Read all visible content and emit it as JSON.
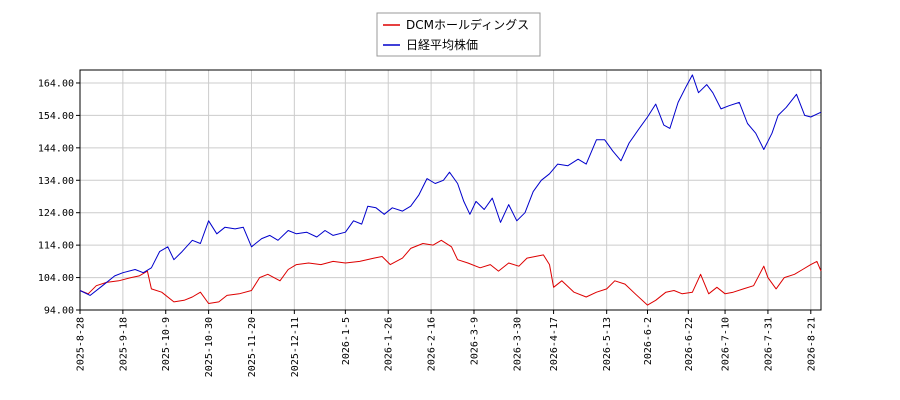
{
  "chart_data": {
    "type": "line",
    "title": "",
    "xlabel": "",
    "ylabel": "",
    "ylim": [
      94,
      168
    ],
    "xlim": [
      "2025-08-28",
      "2026-08-26"
    ],
    "y_ticks": [
      "94.00",
      "104.00",
      "114.00",
      "124.00",
      "134.00",
      "144.00",
      "154.00",
      "164.00"
    ],
    "x_ticks": [
      "2025-8-28",
      "2025-9-18",
      "2025-10-9",
      "2025-10-30",
      "2025-11-20",
      "2025-12-11",
      "2026-1-5",
      "2026-1-26",
      "2026-2-16",
      "2026-3-9",
      "2026-3-30",
      "2026-4-17",
      "2026-5-13",
      "2026-6-2",
      "2026-6-22",
      "2026-7-10",
      "2026-7-31",
      "2026-8-21"
    ],
    "x_tick_dates": [
      "2025-08-28",
      "2025-09-18",
      "2025-10-09",
      "2025-10-30",
      "2025-11-20",
      "2025-12-11",
      "2026-01-05",
      "2026-01-26",
      "2026-02-16",
      "2026-03-09",
      "2026-03-30",
      "2026-04-17",
      "2026-05-13",
      "2026-06-02",
      "2026-06-22",
      "2026-07-10",
      "2026-07-31",
      "2026-08-21"
    ],
    "grid": true,
    "legend_position": "top-center",
    "series": [
      {
        "name": "DCMホールディングス",
        "color": "#dd0000",
        "points": [
          [
            "2025-08-28",
            100.0
          ],
          [
            "2025-09-01",
            99.0
          ],
          [
            "2025-09-05",
            101.5
          ],
          [
            "2025-09-10",
            102.5
          ],
          [
            "2025-09-16",
            103.0
          ],
          [
            "2025-09-22",
            104.0
          ],
          [
            "2025-09-26",
            104.5
          ],
          [
            "2025-09-30",
            106.0
          ],
          [
            "2025-10-02",
            100.5
          ],
          [
            "2025-10-07",
            99.5
          ],
          [
            "2025-10-13",
            96.5
          ],
          [
            "2025-10-18",
            97.0
          ],
          [
            "2025-10-22",
            98.0
          ],
          [
            "2025-10-26",
            99.5
          ],
          [
            "2025-10-30",
            96.0
          ],
          [
            "2025-11-04",
            96.5
          ],
          [
            "2025-11-08",
            98.5
          ],
          [
            "2025-11-14",
            99.0
          ],
          [
            "2025-11-20",
            100.0
          ],
          [
            "2025-11-24",
            104.0
          ],
          [
            "2025-11-28",
            105.0
          ],
          [
            "2025-12-04",
            103.0
          ],
          [
            "2025-12-08",
            106.5
          ],
          [
            "2025-12-12",
            108.0
          ],
          [
            "2025-12-18",
            108.5
          ],
          [
            "2025-12-24",
            108.0
          ],
          [
            "2025-12-30",
            109.0
          ],
          [
            "2026-01-05",
            108.5
          ],
          [
            "2026-01-12",
            109.0
          ],
          [
            "2026-01-19",
            110.0
          ],
          [
            "2026-01-23",
            110.5
          ],
          [
            "2026-01-27",
            108.0
          ],
          [
            "2026-02-02",
            110.0
          ],
          [
            "2026-02-06",
            113.0
          ],
          [
            "2026-02-12",
            114.5
          ],
          [
            "2026-02-17",
            114.0
          ],
          [
            "2026-02-21",
            115.5
          ],
          [
            "2026-02-26",
            113.5
          ],
          [
            "2026-03-01",
            109.5
          ],
          [
            "2026-03-06",
            108.5
          ],
          [
            "2026-03-12",
            107.0
          ],
          [
            "2026-03-17",
            108.0
          ],
          [
            "2026-03-21",
            106.0
          ],
          [
            "2026-03-26",
            108.5
          ],
          [
            "2026-03-31",
            107.5
          ],
          [
            "2026-04-04",
            110.0
          ],
          [
            "2026-04-08",
            110.5
          ],
          [
            "2026-04-12",
            111.0
          ],
          [
            "2026-04-15",
            108.0
          ],
          [
            "2026-04-17",
            101.0
          ],
          [
            "2026-04-21",
            103.0
          ],
          [
            "2026-04-27",
            99.5
          ],
          [
            "2026-05-03",
            98.0
          ],
          [
            "2026-05-08",
            99.5
          ],
          [
            "2026-05-13",
            100.5
          ],
          [
            "2026-05-17",
            103.0
          ],
          [
            "2026-05-22",
            102.0
          ],
          [
            "2026-05-27",
            99.0
          ],
          [
            "2026-06-02",
            95.5
          ],
          [
            "2026-06-06",
            97.0
          ],
          [
            "2026-06-11",
            99.5
          ],
          [
            "2026-06-15",
            100.0
          ],
          [
            "2026-06-19",
            99.0
          ],
          [
            "2026-06-24",
            99.5
          ],
          [
            "2026-06-28",
            105.0
          ],
          [
            "2026-07-02",
            99.0
          ],
          [
            "2026-07-06",
            101.0
          ],
          [
            "2026-07-10",
            99.0
          ],
          [
            "2026-07-14",
            99.5
          ],
          [
            "2026-07-19",
            100.5
          ],
          [
            "2026-07-24",
            101.5
          ],
          [
            "2026-07-29",
            107.5
          ],
          [
            "2026-07-31",
            104.0
          ],
          [
            "2026-08-04",
            100.5
          ],
          [
            "2026-08-08",
            104.0
          ],
          [
            "2026-08-13",
            105.0
          ],
          [
            "2026-08-17",
            106.5
          ],
          [
            "2026-08-21",
            108.0
          ],
          [
            "2026-08-24",
            109.0
          ],
          [
            "2026-08-26",
            106.0
          ]
        ]
      },
      {
        "name": "日経平均株価",
        "color": "#0000cc",
        "points": [
          [
            "2025-08-28",
            100.0
          ],
          [
            "2025-09-02",
            98.5
          ],
          [
            "2025-09-08",
            101.5
          ],
          [
            "2025-09-14",
            104.5
          ],
          [
            "2025-09-18",
            105.5
          ],
          [
            "2025-09-24",
            106.5
          ],
          [
            "2025-09-28",
            105.5
          ],
          [
            "2025-10-02",
            107.0
          ],
          [
            "2025-10-06",
            112.0
          ],
          [
            "2025-10-10",
            113.5
          ],
          [
            "2025-10-13",
            109.5
          ],
          [
            "2025-10-17",
            112.0
          ],
          [
            "2025-10-22",
            115.5
          ],
          [
            "2025-10-26",
            114.5
          ],
          [
            "2025-10-30",
            121.5
          ],
          [
            "2025-11-03",
            117.5
          ],
          [
            "2025-11-07",
            119.5
          ],
          [
            "2025-11-12",
            119.0
          ],
          [
            "2025-11-16",
            119.5
          ],
          [
            "2025-11-20",
            113.5
          ],
          [
            "2025-11-25",
            116.0
          ],
          [
            "2025-11-29",
            117.0
          ],
          [
            "2025-12-03",
            115.5
          ],
          [
            "2025-12-08",
            118.5
          ],
          [
            "2025-12-12",
            117.5
          ],
          [
            "2025-12-17",
            118.0
          ],
          [
            "2025-12-22",
            116.5
          ],
          [
            "2025-12-26",
            118.5
          ],
          [
            "2025-12-30",
            117.0
          ],
          [
            "2026-01-05",
            118.0
          ],
          [
            "2026-01-09",
            121.5
          ],
          [
            "2026-01-13",
            120.5
          ],
          [
            "2026-01-16",
            126.0
          ],
          [
            "2026-01-20",
            125.5
          ],
          [
            "2026-01-24",
            123.5
          ],
          [
            "2026-01-28",
            125.5
          ],
          [
            "2026-02-02",
            124.5
          ],
          [
            "2026-02-06",
            126.0
          ],
          [
            "2026-02-10",
            129.5
          ],
          [
            "2026-02-14",
            134.5
          ],
          [
            "2026-02-18",
            133.0
          ],
          [
            "2026-02-22",
            134.0
          ],
          [
            "2026-02-25",
            136.5
          ],
          [
            "2026-03-01",
            133.0
          ],
          [
            "2026-03-04",
            127.5
          ],
          [
            "2026-03-07",
            123.5
          ],
          [
            "2026-03-10",
            127.5
          ],
          [
            "2026-03-14",
            125.0
          ],
          [
            "2026-03-18",
            128.5
          ],
          [
            "2026-03-22",
            121.0
          ],
          [
            "2026-03-26",
            126.5
          ],
          [
            "2026-03-30",
            121.5
          ],
          [
            "2026-04-03",
            124.0
          ],
          [
            "2026-04-07",
            130.5
          ],
          [
            "2026-04-11",
            134.0
          ],
          [
            "2026-04-15",
            136.0
          ],
          [
            "2026-04-19",
            139.0
          ],
          [
            "2026-04-24",
            138.5
          ],
          [
            "2026-04-29",
            140.5
          ],
          [
            "2026-05-03",
            139.0
          ],
          [
            "2026-05-08",
            146.5
          ],
          [
            "2026-05-12",
            146.5
          ],
          [
            "2026-05-16",
            143.0
          ],
          [
            "2026-05-20",
            140.0
          ],
          [
            "2026-05-24",
            145.5
          ],
          [
            "2026-05-29",
            150.0
          ],
          [
            "2026-06-02",
            153.5
          ],
          [
            "2026-06-06",
            157.5
          ],
          [
            "2026-06-10",
            151.0
          ],
          [
            "2026-06-13",
            150.0
          ],
          [
            "2026-06-17",
            158.0
          ],
          [
            "2026-06-21",
            163.0
          ],
          [
            "2026-06-24",
            166.5
          ],
          [
            "2026-06-27",
            161.0
          ],
          [
            "2026-07-01",
            163.5
          ],
          [
            "2026-07-04",
            161.0
          ],
          [
            "2026-07-08",
            156.0
          ],
          [
            "2026-07-12",
            157.0
          ],
          [
            "2026-07-17",
            158.0
          ],
          [
            "2026-07-21",
            151.5
          ],
          [
            "2026-07-25",
            148.5
          ],
          [
            "2026-07-29",
            143.5
          ],
          [
            "2026-08-02",
            148.5
          ],
          [
            "2026-08-05",
            154.0
          ],
          [
            "2026-08-09",
            156.5
          ],
          [
            "2026-08-14",
            160.5
          ],
          [
            "2026-08-18",
            154.0
          ],
          [
            "2026-08-21",
            153.5
          ],
          [
            "2026-08-26",
            155.0
          ]
        ]
      }
    ]
  }
}
